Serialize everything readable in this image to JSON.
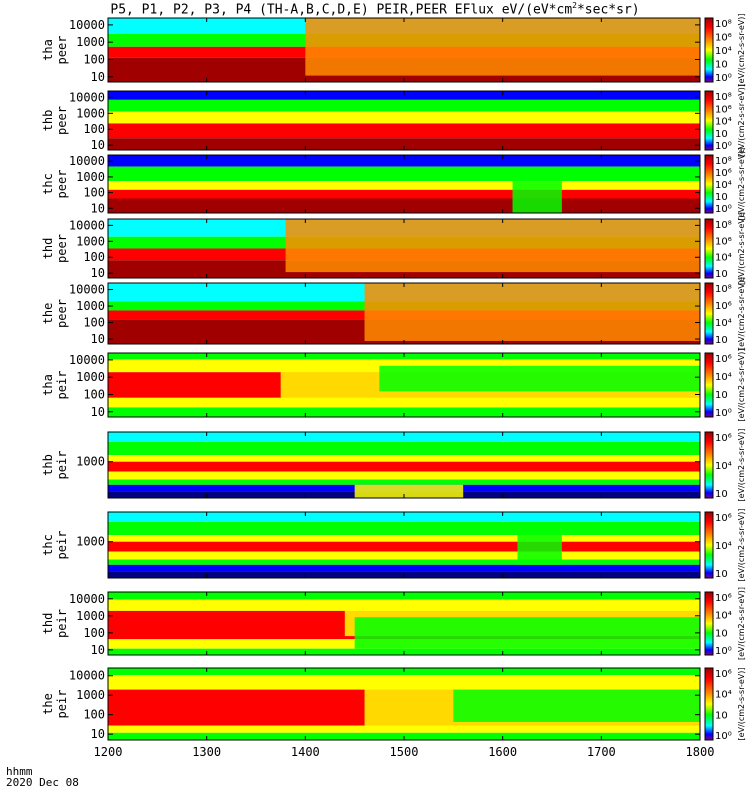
{
  "title": {
    "prefix": "P5, P1, P2, P3, P4 (TH-A,B,C,D,E) PEIR,PEER EFlux eV/(eV*cm",
    "sup": "2",
    "suffix": "*sec*sr)"
  },
  "footer": {
    "line1": "hhmm",
    "line2": "2020 Dec 08"
  },
  "colorbar_label": "[eV/(cm2-s-sr-eV)]",
  "colors": {
    "dark_red": "#a00000",
    "red": "#ff0000",
    "orange": "#ff8c00",
    "yellow": "#ffff00",
    "green": "#00ff00",
    "cyan": "#00ffff",
    "blue": "#0000ff",
    "dark_blue": "#000080",
    "purple": "#800080",
    "black": "#000000"
  },
  "chart_data": {
    "type": "heatmap",
    "xaxis": {
      "ticks": [
        1200,
        1300,
        1400,
        1500,
        1600,
        1700,
        1800
      ],
      "tick_labels": [
        "1200",
        "1300",
        "1400",
        "1500",
        "1600",
        "1700",
        "1800"
      ],
      "range": [
        1200,
        1800
      ],
      "units": "hhmm"
    },
    "panels": [
      {
        "id": "tha_peer",
        "label": [
          "tha",
          "peer"
        ],
        "yscale": "log",
        "yrange": [
          5,
          25000
        ],
        "yticks": [
          10,
          100,
          1000,
          10000
        ],
        "ytick_labels": [
          "10",
          "100",
          "1000",
          "10000"
        ],
        "colorbar": {
          "ticks": [
            "10⁸",
            "10⁶",
            "10⁴",
            "10⁲",
            "10⁰"
          ]
        }
      },
      {
        "id": "thb_peer",
        "label": [
          "thb",
          "peer"
        ],
        "yscale": "log",
        "yrange": [
          5,
          25000
        ],
        "yticks": [
          10,
          100,
          1000,
          10000
        ],
        "ytick_labels": [
          "10",
          "100",
          "1000",
          "10000"
        ],
        "colorbar": {
          "ticks": [
            "10⁸",
            "10⁶",
            "10⁴",
            "10⁲",
            "10⁰"
          ]
        }
      },
      {
        "id": "thc_peer",
        "label": [
          "thc",
          "peer"
        ],
        "yscale": "log",
        "yrange": [
          5,
          25000
        ],
        "yticks": [
          10,
          100,
          1000,
          10000
        ],
        "ytick_labels": [
          "10",
          "100",
          "1000",
          "10000"
        ],
        "colorbar": {
          "ticks": [
            "10⁸",
            "10⁶",
            "10⁴",
            "10⁲",
            "10⁰"
          ]
        }
      },
      {
        "id": "thd_peer",
        "label": [
          "thd",
          "peer"
        ],
        "yscale": "log",
        "yrange": [
          5,
          25000
        ],
        "yticks": [
          10,
          100,
          1000,
          10000
        ],
        "ytick_labels": [
          "10",
          "100",
          "1000",
          "10000"
        ],
        "colorbar": {
          "ticks": [
            "10⁸",
            "10⁶",
            "10⁴",
            "10⁲"
          ]
        }
      },
      {
        "id": "the_peer",
        "label": [
          "the",
          "peer"
        ],
        "yscale": "log",
        "yrange": [
          5,
          25000
        ],
        "yticks": [
          10,
          100,
          1000,
          10000
        ],
        "ytick_labels": [
          "10",
          "100",
          "1000",
          "10000"
        ],
        "colorbar": {
          "ticks": [
            "10⁸",
            "10⁶",
            "10⁴",
            "10⁲"
          ]
        }
      },
      {
        "id": "tha_peir",
        "label": [
          "tha",
          "peir"
        ],
        "yscale": "log",
        "yrange": [
          5,
          25000
        ],
        "yticks": [
          10,
          100,
          1000,
          10000
        ],
        "ytick_labels": [
          "10",
          "100",
          "1000",
          "10000"
        ],
        "colorbar": {
          "ticks": [
            "10⁶",
            "10⁴",
            "10⁲",
            "10⁰"
          ]
        }
      },
      {
        "id": "thb_peir",
        "label": [
          "thb",
          "peir"
        ],
        "yscale": "log",
        "yrange": [
          60,
          10000
        ],
        "yticks": [
          1000
        ],
        "ytick_labels": [
          "1000"
        ],
        "colorbar": {
          "ticks": [
            "10⁶",
            "10⁴",
            "10⁲"
          ]
        }
      },
      {
        "id": "thc_peir",
        "label": [
          "thc",
          "peir"
        ],
        "yscale": "log",
        "yrange": [
          60,
          10000
        ],
        "yticks": [
          1000
        ],
        "ytick_labels": [
          "1000"
        ],
        "colorbar": {
          "ticks": [
            "10⁶",
            "10⁴",
            "10⁲"
          ]
        }
      },
      {
        "id": "thd_peir",
        "label": [
          "thd",
          "peir"
        ],
        "yscale": "log",
        "yrange": [
          5,
          25000
        ],
        "yticks": [
          10,
          100,
          1000,
          10000
        ],
        "ytick_labels": [
          "10",
          "100",
          "1000",
          "10000"
        ],
        "colorbar": {
          "ticks": [
            "10⁶",
            "10⁴",
            "10⁲",
            "10⁰"
          ]
        }
      },
      {
        "id": "the_peir",
        "label": [
          "the",
          "peir"
        ],
        "yscale": "log",
        "yrange": [
          5,
          25000
        ],
        "yticks": [
          10,
          100,
          1000,
          10000
        ],
        "ytick_labels": [
          "10",
          "100",
          "1000",
          "10000"
        ],
        "colorbar": {
          "ticks": [
            "10⁶",
            "10⁴",
            "10⁲",
            "10⁰"
          ]
        }
      }
    ]
  }
}
